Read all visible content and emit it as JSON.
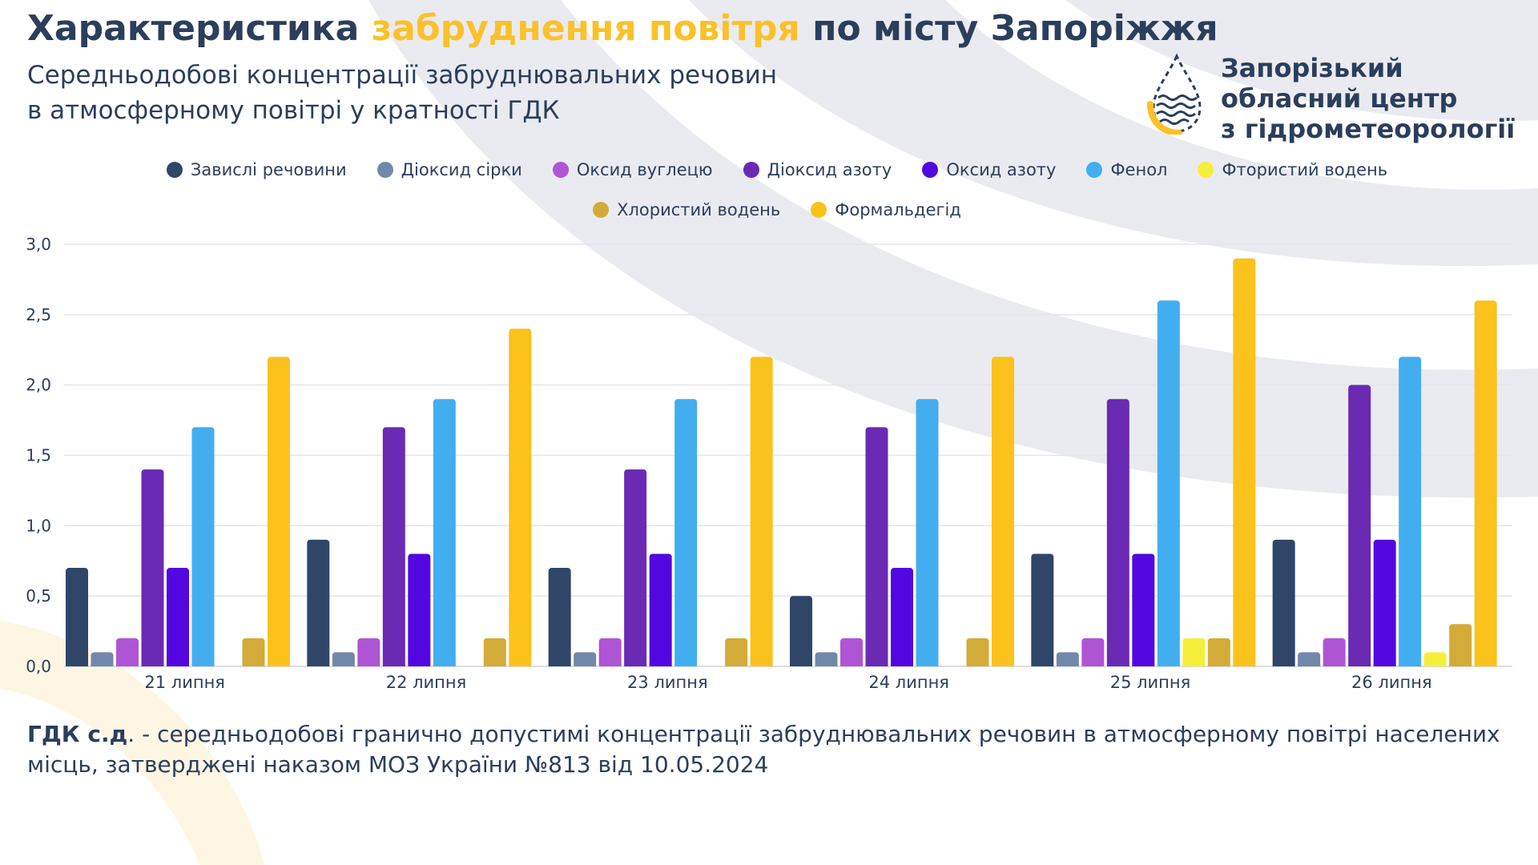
{
  "header": {
    "title_part1": "Характеристика ",
    "title_accent": "забруднення повітря",
    "title_part2": " по місту Запоріжжя",
    "subtitle_line1": "Середньодобові концентрації забруднювальних речовин",
    "subtitle_line2": "в атмосферному повітрі у кратності ГДК"
  },
  "logo": {
    "icon": "drop-wave-icon",
    "line1": "Запорізький",
    "line2": "обласний центр",
    "line3": "з гідрометеорології"
  },
  "footnote": {
    "term": "ГДК с.д",
    "text": ". - середньодобові гранично допустимі концентрації забруднювальних речовин в атмосферному повітрі населених місць, затверджені наказом МОЗ України №813 від 10.05.2024"
  },
  "colors": {
    "primary": "#2b3e5c",
    "accent": "#fbc12a"
  },
  "chart_data": {
    "type": "bar",
    "title": "",
    "xlabel": "",
    "ylabel": "",
    "ylim": [
      0,
      3.0
    ],
    "yticks": [
      "0,0",
      "0,5",
      "1,0",
      "1,5",
      "2,0",
      "2,5",
      "3,0"
    ],
    "grid": true,
    "legend_position": "top",
    "categories": [
      "21 липня",
      "22 липня",
      "23 липня",
      "24 липня",
      "25 липня",
      "26 липня"
    ],
    "series": [
      {
        "name": "Завислі речовини",
        "color": "#2f4668",
        "values": [
          0.7,
          0.9,
          0.7,
          0.5,
          0.8,
          0.9
        ]
      },
      {
        "name": "Діоксид сірки",
        "color": "#7089aa",
        "values": [
          0.1,
          0.1,
          0.1,
          0.1,
          0.1,
          0.1
        ]
      },
      {
        "name": "Оксид вуглецю",
        "color": "#b054d6",
        "values": [
          0.2,
          0.2,
          0.2,
          0.2,
          0.2,
          0.2
        ]
      },
      {
        "name": "Діоксид азоту",
        "color": "#6a2ab3",
        "values": [
          1.4,
          1.7,
          1.4,
          1.7,
          1.9,
          2.0
        ]
      },
      {
        "name": "Оксид азоту",
        "color": "#5307e0",
        "values": [
          0.7,
          0.8,
          0.8,
          0.7,
          0.8,
          0.9
        ]
      },
      {
        "name": "Фенол",
        "color": "#42aef0",
        "values": [
          1.7,
          1.9,
          1.9,
          1.9,
          2.6,
          2.2
        ]
      },
      {
        "name": "Фтористий водень",
        "color": "#f6ef3a",
        "values": [
          0,
          0,
          0,
          0,
          0.2,
          0.1
        ]
      },
      {
        "name": "Хлористий водень",
        "color": "#d3ab38",
        "values": [
          0.2,
          0.2,
          0.2,
          0.2,
          0.2,
          0.3
        ]
      },
      {
        "name": "Формальдегід",
        "color": "#fbc21c",
        "values": [
          2.2,
          2.4,
          2.2,
          2.2,
          2.9,
          2.6
        ]
      }
    ]
  }
}
